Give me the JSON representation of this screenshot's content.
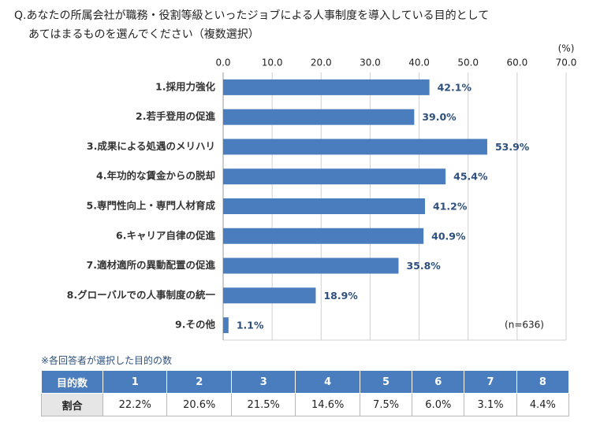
{
  "chart_data": {
    "type": "hbar",
    "title": [
      "Q.あなたの所属会社が職務・役割等級といったジョブによる人事制度を導入している目的として",
      "あてはまるものを選んでください（複数選択）"
    ],
    "xlabel": "(%)",
    "annotation": "(n=636)",
    "categories": [
      "1.採用力強化",
      "2.若手登用の促進",
      "3.成果による処遇のメリハリ",
      "4.年功的な賃金からの脱却",
      "5.専門性向上・専門人材育成",
      "6.キャリア自律の促進",
      "7.適材適所の異動配置の促進",
      "8.グローバルでの人事制度の統一",
      "9.その他"
    ],
    "values": [
      42.1,
      39.0,
      53.9,
      45.4,
      41.2,
      40.9,
      35.8,
      18.9,
      1.1
    ],
    "value_labels": [
      "42.1%",
      "39.0%",
      "53.9%",
      "45.4%",
      "41.2%",
      "40.9%",
      "35.8%",
      "18.9%",
      "1.1%"
    ],
    "color": "#4a7dbd",
    "xlim": [
      0,
      70
    ],
    "xticks": [
      {
        "value": 0,
        "label": "0.0"
      },
      {
        "value": 10,
        "label": "10.0"
      },
      {
        "value": 20,
        "label": "20.0"
      },
      {
        "value": 30,
        "label": "30.0"
      },
      {
        "value": 40,
        "label": "40.0"
      },
      {
        "value": 50,
        "label": "50.0"
      },
      {
        "value": 60,
        "label": "60.0"
      },
      {
        "value": 70,
        "label": "70.0"
      }
    ],
    "grid": true
  },
  "table": {
    "note": "※各回答者が選択した目的の数",
    "header": [
      "目的数",
      "1",
      "2",
      "3",
      "4",
      "5",
      "6",
      "7",
      "8"
    ],
    "rows": [
      [
        "割合",
        "22.2%",
        "20.6%",
        "21.5%",
        "14.6%",
        "7.5%",
        "6.0%",
        "3.1%",
        "4.4%"
      ]
    ]
  }
}
